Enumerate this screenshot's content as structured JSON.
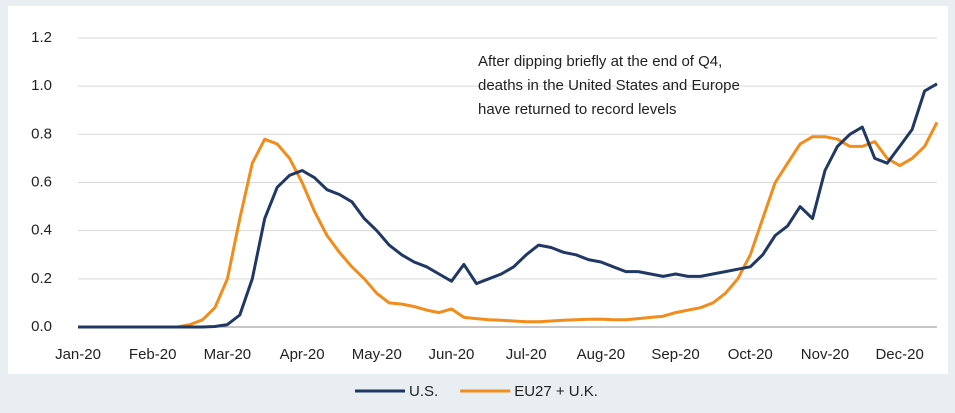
{
  "chart_data": {
    "type": "line",
    "annotation": [
      "After dipping briefly at the end of Q4,",
      "deaths in the United States and Europe",
      "have returned to record levels"
    ],
    "categories": [
      "Jan-20",
      null,
      null,
      null,
      null,
      null,
      "Feb-20",
      null,
      null,
      null,
      null,
      null,
      "Mar-20",
      null,
      null,
      null,
      null,
      null,
      "Apr-20",
      null,
      null,
      null,
      null,
      null,
      "May-20",
      null,
      null,
      null,
      null,
      null,
      "Jun-20",
      null,
      null,
      null,
      null,
      null,
      "Jul-20",
      null,
      null,
      null,
      null,
      null,
      "Aug-20",
      null,
      null,
      null,
      null,
      null,
      "Sep-20",
      null,
      null,
      null,
      null,
      null,
      "Oct-20",
      null,
      null,
      null,
      null,
      null,
      "Nov-20",
      null,
      null,
      null,
      null,
      null,
      "Dec-20",
      null,
      null,
      null
    ],
    "series": [
      {
        "name": "U.S.",
        "color": "#1f3864",
        "values": [
          0,
          0,
          0,
          0,
          0,
          0,
          0,
          0,
          0,
          0,
          0,
          0.002,
          0.01,
          0.05,
          0.2,
          0.45,
          0.58,
          0.63,
          0.65,
          0.62,
          0.57,
          0.55,
          0.52,
          0.45,
          0.4,
          0.34,
          0.3,
          0.27,
          0.25,
          0.22,
          0.19,
          0.26,
          0.18,
          0.2,
          0.22,
          0.25,
          0.3,
          0.34,
          0.33,
          0.31,
          0.3,
          0.28,
          0.27,
          0.25,
          0.23,
          0.23,
          0.22,
          0.21,
          0.22,
          0.21,
          0.21,
          0.22,
          0.23,
          0.24,
          0.25,
          0.3,
          0.38,
          0.42,
          0.5,
          0.45,
          0.65,
          0.75,
          0.8,
          0.83,
          0.7,
          0.68,
          0.75,
          0.82,
          0.98,
          1.01
        ]
      },
      {
        "name": "EU27 + U.K.",
        "color": "#f28c1a",
        "values": [
          0,
          0,
          0,
          0,
          0,
          0,
          0,
          0,
          0,
          0.01,
          0.03,
          0.08,
          0.2,
          0.45,
          0.68,
          0.78,
          0.76,
          0.7,
          0.6,
          0.48,
          0.38,
          0.31,
          0.25,
          0.2,
          0.14,
          0.1,
          0.095,
          0.085,
          0.07,
          0.06,
          0.075,
          0.04,
          0.035,
          0.03,
          0.028,
          0.025,
          0.022,
          0.022,
          0.025,
          0.028,
          0.03,
          0.032,
          0.033,
          0.03,
          0.03,
          0.035,
          0.04,
          0.045,
          0.06,
          0.07,
          0.08,
          0.1,
          0.14,
          0.2,
          0.3,
          0.45,
          0.6,
          0.68,
          0.76,
          0.79,
          0.79,
          0.78,
          0.75,
          0.75,
          0.77,
          0.7,
          0.67,
          0.7,
          0.75,
          0.85
        ]
      }
    ],
    "ylim": [
      0,
      1.2
    ],
    "yticks": [
      {
        "value": 0,
        "label": "0.0"
      },
      0.2,
      0.4,
      0.6,
      0.8,
      {
        "value": 1,
        "label": "1.0"
      },
      1.2
    ],
    "grid": true,
    "legend": "bottom"
  }
}
